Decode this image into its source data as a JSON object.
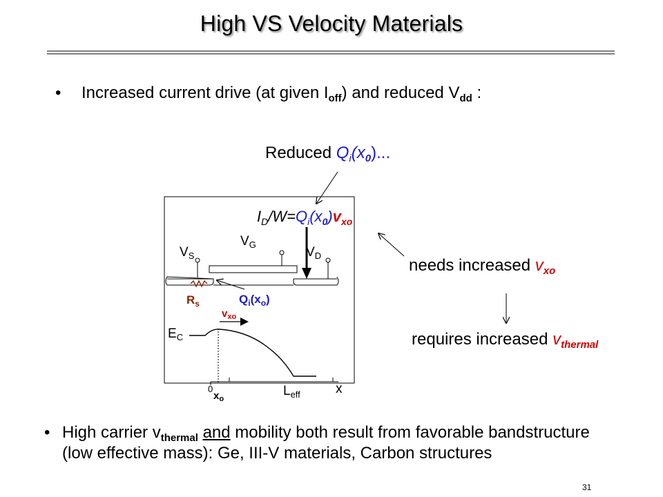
{
  "title": "High VS Velocity Materials",
  "bullet1": {
    "text_a": "Increased current drive (at given I",
    "sub_off": "off",
    "text_b": ") and reduced V",
    "sub_dd": "dd",
    "text_c": " :"
  },
  "reduced": {
    "word": "Reduced ",
    "q": "Q",
    "q_sub": "i",
    "x": "(x",
    "x_sub": "0",
    "close": ")..."
  },
  "equation": {
    "i": "I",
    "i_sub": "D",
    "w": "/W=",
    "q": "Q",
    "q_sub": "i",
    "x": "(x",
    "x_sub": "0",
    "close": ")",
    "v": "v",
    "v_sub": "xo"
  },
  "needs": {
    "text": "needs increased ",
    "v": "v",
    "v_sub": "xo"
  },
  "requires": {
    "text": "requires increased ",
    "v": "v",
    "v_sub": "thermal"
  },
  "device": {
    "vs": "V",
    "vs_sub": "S",
    "vg": "V",
    "vg_sub": "G",
    "vd": "V",
    "vd_sub": "D",
    "rs": "R",
    "rs_sub": "s",
    "qi": "Q",
    "qi_sub": "i",
    "qi_paren": "(x",
    "qi_x_sub": "o",
    "qi_close": ")"
  },
  "band": {
    "vxo": "v",
    "vxo_sub": "xo",
    "ec": "E",
    "ec_sub": "C",
    "zero": "0",
    "xo": "x",
    "xo_sub": "o",
    "leff": "L",
    "leff_sub": "eff",
    "x_axis": "x"
  },
  "bullet2": {
    "line1_a": "High carrier v",
    "line1_sub": "thermal",
    "line1_space": " ",
    "line1_and": "and",
    "line1_b": " mobility both result from favorable bandstructure",
    "line2": "(low effective mass):  Ge, III-V materials, Carbon structures"
  },
  "page_number": "31",
  "colors": {
    "blue": "#1a1ad6",
    "red": "#d40000",
    "resistor": "#8b2500"
  },
  "icons": {
    "bullet": "bullet-dot"
  }
}
